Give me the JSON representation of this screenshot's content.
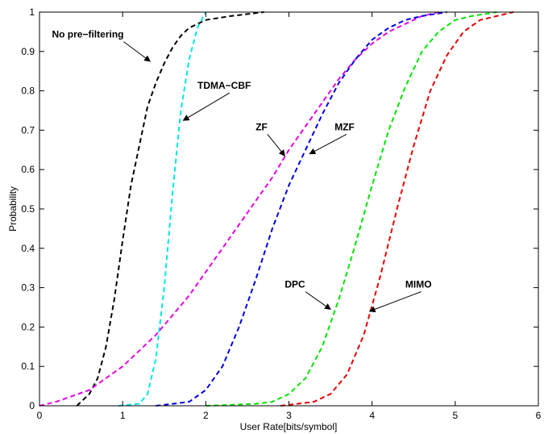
{
  "chart_data": {
    "type": "line",
    "title": "",
    "xlabel": "User Rate[bits/symbol]",
    "ylabel": "Probability",
    "xlim": [
      0,
      6
    ],
    "ylim": [
      0,
      1
    ],
    "xticks": [
      "0",
      "1",
      "2",
      "3",
      "4",
      "5",
      "6"
    ],
    "yticks": [
      "0",
      "0.1",
      "0.2",
      "0.3",
      "0.4",
      "0.5",
      "0.6",
      "0.7",
      "0.8",
      "0.9",
      "1"
    ],
    "grid": false,
    "line_style": "dashed",
    "series": [
      {
        "name": "No pre-filtering",
        "color": "#000000",
        "points": [
          [
            0.45,
            0
          ],
          [
            0.6,
            0.03
          ],
          [
            0.7,
            0.07
          ],
          [
            0.8,
            0.15
          ],
          [
            0.9,
            0.27
          ],
          [
            1.0,
            0.42
          ],
          [
            1.1,
            0.56
          ],
          [
            1.2,
            0.66
          ],
          [
            1.3,
            0.76
          ],
          [
            1.4,
            0.82
          ],
          [
            1.5,
            0.87
          ],
          [
            1.6,
            0.91
          ],
          [
            1.7,
            0.94
          ],
          [
            1.8,
            0.96
          ],
          [
            2.0,
            0.98
          ],
          [
            2.3,
            0.99
          ],
          [
            2.7,
            1.0
          ]
        ]
      },
      {
        "name": "TDMA-CBF",
        "color": "#00E5E5",
        "points": [
          [
            0.95,
            0
          ],
          [
            1.2,
            0.005
          ],
          [
            1.3,
            0.03
          ],
          [
            1.4,
            0.12
          ],
          [
            1.5,
            0.3
          ],
          [
            1.6,
            0.54
          ],
          [
            1.7,
            0.75
          ],
          [
            1.8,
            0.88
          ],
          [
            1.9,
            0.96
          ],
          [
            2.0,
            1.0
          ]
        ]
      },
      {
        "name": "ZF",
        "color": "#E600E6",
        "points": [
          [
            0,
            0
          ],
          [
            0.2,
            0.01
          ],
          [
            0.4,
            0.025
          ],
          [
            0.6,
            0.04
          ],
          [
            0.8,
            0.07
          ],
          [
            1.0,
            0.1
          ],
          [
            1.2,
            0.14
          ],
          [
            1.4,
            0.18
          ],
          [
            1.6,
            0.23
          ],
          [
            1.8,
            0.28
          ],
          [
            2.0,
            0.34
          ],
          [
            2.2,
            0.4
          ],
          [
            2.4,
            0.46
          ],
          [
            2.6,
            0.52
          ],
          [
            2.8,
            0.58
          ],
          [
            3.0,
            0.65
          ],
          [
            3.2,
            0.71
          ],
          [
            3.4,
            0.77
          ],
          [
            3.6,
            0.83
          ],
          [
            3.8,
            0.88
          ],
          [
            4.0,
            0.92
          ],
          [
            4.2,
            0.95
          ],
          [
            4.4,
            0.97
          ],
          [
            4.6,
            0.99
          ],
          [
            4.8,
            1.0
          ]
        ]
      },
      {
        "name": "MZF",
        "color": "#0000E6",
        "points": [
          [
            1.4,
            0
          ],
          [
            1.6,
            0.005
          ],
          [
            1.8,
            0.01
          ],
          [
            2.0,
            0.04
          ],
          [
            2.2,
            0.1
          ],
          [
            2.4,
            0.2
          ],
          [
            2.6,
            0.32
          ],
          [
            2.8,
            0.45
          ],
          [
            3.0,
            0.56
          ],
          [
            3.2,
            0.65
          ],
          [
            3.4,
            0.74
          ],
          [
            3.6,
            0.82
          ],
          [
            3.8,
            0.88
          ],
          [
            4.0,
            0.93
          ],
          [
            4.2,
            0.96
          ],
          [
            4.4,
            0.98
          ],
          [
            4.6,
            0.99
          ],
          [
            4.9,
            1.0
          ]
        ]
      },
      {
        "name": "DPC",
        "color": "#00E600",
        "points": [
          [
            2.0,
            0
          ],
          [
            2.6,
            0.005
          ],
          [
            2.8,
            0.01
          ],
          [
            3.0,
            0.03
          ],
          [
            3.2,
            0.07
          ],
          [
            3.4,
            0.15
          ],
          [
            3.6,
            0.27
          ],
          [
            3.8,
            0.41
          ],
          [
            4.0,
            0.56
          ],
          [
            4.2,
            0.7
          ],
          [
            4.4,
            0.81
          ],
          [
            4.6,
            0.9
          ],
          [
            4.8,
            0.95
          ],
          [
            5.0,
            0.98
          ],
          [
            5.2,
            0.99
          ],
          [
            5.5,
            1.0
          ]
        ]
      },
      {
        "name": "MIMO",
        "color": "#E60000",
        "points": [
          [
            2.9,
            0
          ],
          [
            3.1,
            0.005
          ],
          [
            3.3,
            0.01
          ],
          [
            3.5,
            0.03
          ],
          [
            3.7,
            0.08
          ],
          [
            3.9,
            0.18
          ],
          [
            4.1,
            0.33
          ],
          [
            4.3,
            0.5
          ],
          [
            4.5,
            0.66
          ],
          [
            4.7,
            0.8
          ],
          [
            4.9,
            0.89
          ],
          [
            5.1,
            0.95
          ],
          [
            5.3,
            0.98
          ],
          [
            5.5,
            0.99
          ],
          [
            5.7,
            1.0
          ]
        ]
      }
    ],
    "annotations": [
      {
        "text": "No pre−filtering",
        "tx": 0.15,
        "ty": 0.935,
        "ax": 1.33,
        "ay": 0.875
      },
      {
        "text": "TDMA−CBF",
        "tx": 1.9,
        "ty": 0.805,
        "ax": 1.73,
        "ay": 0.725
      },
      {
        "text": "ZF",
        "tx": 2.6,
        "ty": 0.7,
        "ax": 2.95,
        "ay": 0.635
      },
      {
        "text": "MZF",
        "tx": 3.55,
        "ty": 0.7,
        "ax": 3.25,
        "ay": 0.64
      },
      {
        "text": "DPC",
        "tx": 2.95,
        "ty": 0.3,
        "ax": 3.5,
        "ay": 0.245
      },
      {
        "text": "MIMO",
        "tx": 4.4,
        "ty": 0.3,
        "ax": 3.97,
        "ay": 0.24
      }
    ]
  }
}
